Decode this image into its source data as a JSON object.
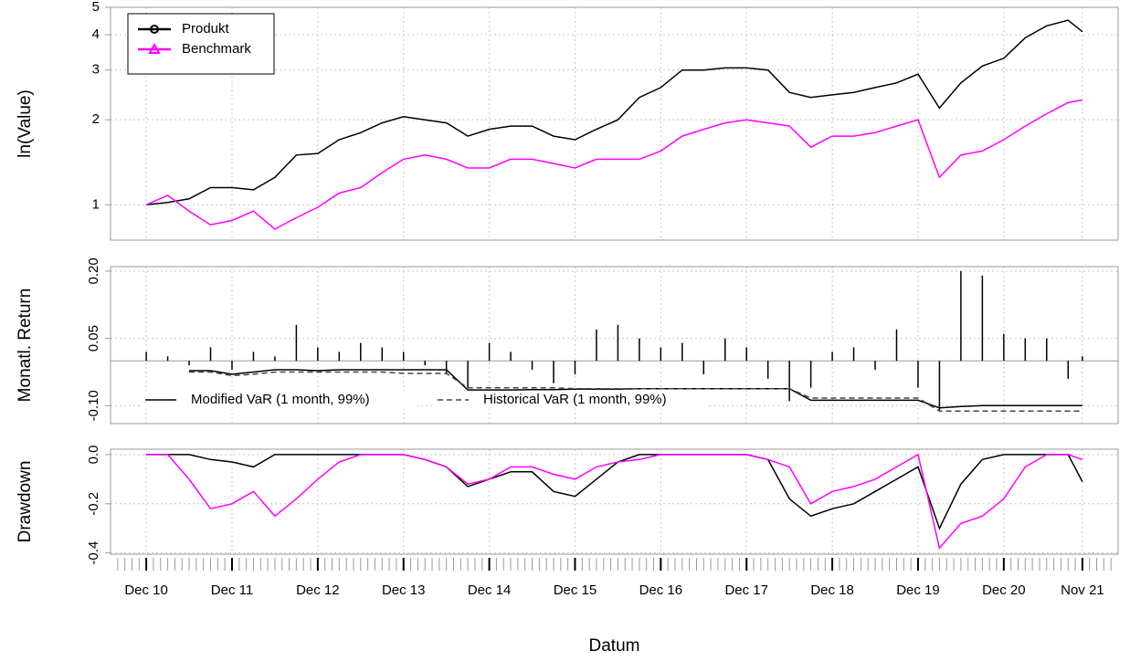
{
  "chart_data": [
    {
      "type": "line",
      "log": true,
      "ylabel": "ln(Value)",
      "legend": "top-left",
      "grid": true,
      "xlim": [
        "2010-07",
        "2022-04"
      ],
      "ylim": [
        0.75,
        5
      ],
      "yticks": [
        1,
        2,
        3,
        4,
        5
      ],
      "x": [
        "2010-12",
        "2011-03",
        "2011-06",
        "2011-09",
        "2011-12",
        "2012-03",
        "2012-06",
        "2012-09",
        "2012-12",
        "2013-03",
        "2013-06",
        "2013-09",
        "2013-12",
        "2014-03",
        "2014-06",
        "2014-09",
        "2014-12",
        "2015-03",
        "2015-06",
        "2015-09",
        "2015-12",
        "2016-03",
        "2016-06",
        "2016-09",
        "2016-12",
        "2017-03",
        "2017-06",
        "2017-09",
        "2017-12",
        "2018-03",
        "2018-06",
        "2018-09",
        "2018-12",
        "2019-03",
        "2019-06",
        "2019-09",
        "2019-12",
        "2020-03",
        "2020-06",
        "2020-09",
        "2020-12",
        "2021-03",
        "2021-06",
        "2021-09",
        "2021-11"
      ],
      "series": [
        {
          "name": "Produkt",
          "color": "#000000",
          "marker": "circle",
          "values": [
            1.0,
            1.02,
            1.05,
            1.15,
            1.15,
            1.13,
            1.25,
            1.5,
            1.52,
            1.7,
            1.8,
            1.95,
            2.05,
            2.0,
            1.95,
            1.75,
            1.85,
            1.9,
            1.9,
            1.75,
            1.7,
            1.85,
            2.0,
            2.4,
            2.6,
            3.0,
            3.0,
            3.05,
            3.05,
            3.0,
            2.5,
            2.4,
            2.45,
            2.5,
            2.6,
            2.7,
            2.9,
            2.2,
            2.7,
            3.1,
            3.3,
            3.9,
            4.3,
            4.5,
            4.1
          ]
        },
        {
          "name": "Benchmark",
          "color": "#ff00ff",
          "marker": "triangle",
          "values": [
            1.0,
            1.08,
            0.95,
            0.85,
            0.88,
            0.95,
            0.82,
            0.9,
            0.98,
            1.1,
            1.15,
            1.3,
            1.45,
            1.5,
            1.45,
            1.35,
            1.35,
            1.45,
            1.45,
            1.4,
            1.35,
            1.45,
            1.45,
            1.45,
            1.55,
            1.75,
            1.85,
            1.95,
            2.0,
            1.95,
            1.9,
            1.6,
            1.75,
            1.75,
            1.8,
            1.9,
            2.0,
            1.25,
            1.5,
            1.55,
            1.7,
            1.9,
            2.1,
            2.3,
            2.35
          ]
        }
      ]
    },
    {
      "type": "bar",
      "ylabel": "Monatl. Return",
      "legend": "bottom-left",
      "grid": true,
      "color": "#000000",
      "xlim": [
        "2010-07",
        "2022-04"
      ],
      "ylim": [
        -0.14,
        0.21
      ],
      "yticks": [
        {
          "value": -0.1,
          "label": "-0.10"
        },
        0.05,
        {
          "value": 0.2,
          "label": "0.20"
        }
      ],
      "x": [
        "2010-12",
        "2011-03",
        "2011-06",
        "2011-09",
        "2011-12",
        "2012-03",
        "2012-06",
        "2012-09",
        "2012-12",
        "2013-03",
        "2013-06",
        "2013-09",
        "2013-12",
        "2014-03",
        "2014-06",
        "2014-09",
        "2014-12",
        "2015-03",
        "2015-06",
        "2015-09",
        "2015-12",
        "2016-03",
        "2016-06",
        "2016-09",
        "2016-12",
        "2017-03",
        "2017-06",
        "2017-09",
        "2017-12",
        "2018-03",
        "2018-06",
        "2018-09",
        "2018-12",
        "2019-03",
        "2019-06",
        "2019-09",
        "2019-12",
        "2020-03",
        "2020-06",
        "2020-09",
        "2020-12",
        "2021-03",
        "2021-06",
        "2021-09",
        "2021-11"
      ],
      "values": [
        0.02,
        0.01,
        -0.01,
        0.03,
        -0.02,
        0.02,
        0.01,
        0.08,
        0.03,
        0.02,
        0.04,
        0.03,
        0.02,
        -0.01,
        -0.03,
        -0.06,
        0.04,
        0.02,
        -0.02,
        -0.05,
        -0.03,
        0.07,
        0.08,
        0.05,
        0.03,
        0.04,
        -0.03,
        0.05,
        0.03,
        -0.04,
        -0.09,
        -0.06,
        0.02,
        0.03,
        -0.02,
        0.07,
        -0.06,
        -0.11,
        0.2,
        0.19,
        0.06,
        0.05,
        0.05,
        -0.04,
        0.01
      ],
      "series": [
        {
          "name": "Modified VaR (1 month, 99%)",
          "color": "#000000",
          "dash": false,
          "values": [
            null,
            null,
            -0.022,
            -0.022,
            -0.03,
            -0.025,
            -0.02,
            -0.02,
            -0.022,
            -0.02,
            -0.02,
            -0.02,
            -0.02,
            -0.02,
            -0.02,
            -0.065,
            -0.065,
            -0.065,
            -0.064,
            -0.064,
            -0.063,
            -0.063,
            -0.063,
            -0.062,
            -0.062,
            -0.062,
            -0.062,
            -0.062,
            -0.062,
            -0.062,
            -0.062,
            -0.088,
            -0.088,
            -0.088,
            -0.088,
            -0.088,
            -0.088,
            -0.105,
            -0.102,
            -0.1,
            -0.1,
            -0.1,
            -0.1,
            -0.1,
            -0.1
          ]
        },
        {
          "name": "Historical VaR (1 month, 99%)",
          "color": "#444444",
          "dash": true,
          "values": [
            null,
            null,
            -0.025,
            -0.025,
            -0.033,
            -0.03,
            -0.025,
            -0.025,
            -0.025,
            -0.025,
            -0.025,
            -0.025,
            -0.028,
            -0.028,
            -0.028,
            -0.06,
            -0.06,
            -0.06,
            -0.06,
            -0.06,
            -0.062,
            -0.062,
            -0.062,
            -0.062,
            -0.062,
            -0.062,
            -0.062,
            -0.062,
            -0.062,
            -0.062,
            -0.062,
            -0.083,
            -0.083,
            -0.083,
            -0.083,
            -0.083,
            -0.083,
            -0.112,
            -0.112,
            -0.112,
            -0.112,
            -0.112,
            -0.112,
            -0.112,
            -0.112
          ]
        }
      ]
    },
    {
      "type": "line",
      "ylabel": "Drawdown",
      "xlabel": "Datum",
      "grid": true,
      "xlim": [
        "2010-07",
        "2022-04"
      ],
      "ylim": [
        -0.405,
        0.022
      ],
      "yticks": [
        {
          "value": -0.4,
          "label": "-0.4"
        },
        {
          "value": -0.2,
          "label": "-0.2"
        },
        {
          "value": 0,
          "label": "0.0"
        }
      ],
      "xticks": [
        {
          "value": "2010-12",
          "label": "Dec 10"
        },
        {
          "value": "2011-12",
          "label": "Dec 11"
        },
        {
          "value": "2012-12",
          "label": "Dec 12"
        },
        {
          "value": "2013-12",
          "label": "Dec 13"
        },
        {
          "value": "2014-12",
          "label": "Dec 14"
        },
        {
          "value": "2015-12",
          "label": "Dec 15"
        },
        {
          "value": "2016-12",
          "label": "Dec 16"
        },
        {
          "value": "2017-12",
          "label": "Dec 17"
        },
        {
          "value": "2018-12",
          "label": "Dec 18"
        },
        {
          "value": "2019-12",
          "label": "Dec 19"
        },
        {
          "value": "2020-12",
          "label": "Dec 20"
        },
        {
          "value": "2021-11",
          "label": "Nov 21"
        }
      ],
      "x": [
        "2010-12",
        "2011-03",
        "2011-06",
        "2011-09",
        "2011-12",
        "2012-03",
        "2012-06",
        "2012-09",
        "2012-12",
        "2013-03",
        "2013-06",
        "2013-09",
        "2013-12",
        "2014-03",
        "2014-06",
        "2014-09",
        "2014-12",
        "2015-03",
        "2015-06",
        "2015-09",
        "2015-12",
        "2016-03",
        "2016-06",
        "2016-09",
        "2016-12",
        "2017-03",
        "2017-06",
        "2017-09",
        "2017-12",
        "2018-03",
        "2018-06",
        "2018-09",
        "2018-12",
        "2019-03",
        "2019-06",
        "2019-09",
        "2019-12",
        "2020-03",
        "2020-06",
        "2020-09",
        "2020-12",
        "2021-03",
        "2021-06",
        "2021-09",
        "2021-11"
      ],
      "series": [
        {
          "color": "#000000",
          "values": [
            0,
            0,
            0,
            -0.02,
            -0.03,
            -0.05,
            0,
            0,
            0,
            0,
            0,
            0,
            0,
            -0.02,
            -0.05,
            -0.13,
            -0.1,
            -0.07,
            -0.07,
            -0.15,
            -0.17,
            -0.1,
            -0.03,
            0,
            0,
            0,
            0,
            0,
            0,
            -0.02,
            -0.18,
            -0.25,
            -0.22,
            -0.2,
            -0.15,
            -0.1,
            -0.05,
            -0.3,
            -0.12,
            -0.02,
            0,
            0,
            0,
            0,
            -0.11
          ]
        },
        {
          "color": "#ff00ff",
          "values": [
            0,
            0,
            -0.1,
            -0.22,
            -0.2,
            -0.15,
            -0.25,
            -0.18,
            -0.1,
            -0.03,
            0,
            0,
            0,
            -0.02,
            -0.05,
            -0.12,
            -0.1,
            -0.05,
            -0.05,
            -0.08,
            -0.1,
            -0.05,
            -0.03,
            -0.02,
            0,
            0,
            0,
            0,
            0,
            -0.02,
            -0.05,
            -0.2,
            -0.15,
            -0.13,
            -0.1,
            -0.05,
            0,
            -0.38,
            -0.28,
            -0.25,
            -0.18,
            -0.05,
            0,
            0,
            -0.02
          ]
        }
      ]
    }
  ]
}
